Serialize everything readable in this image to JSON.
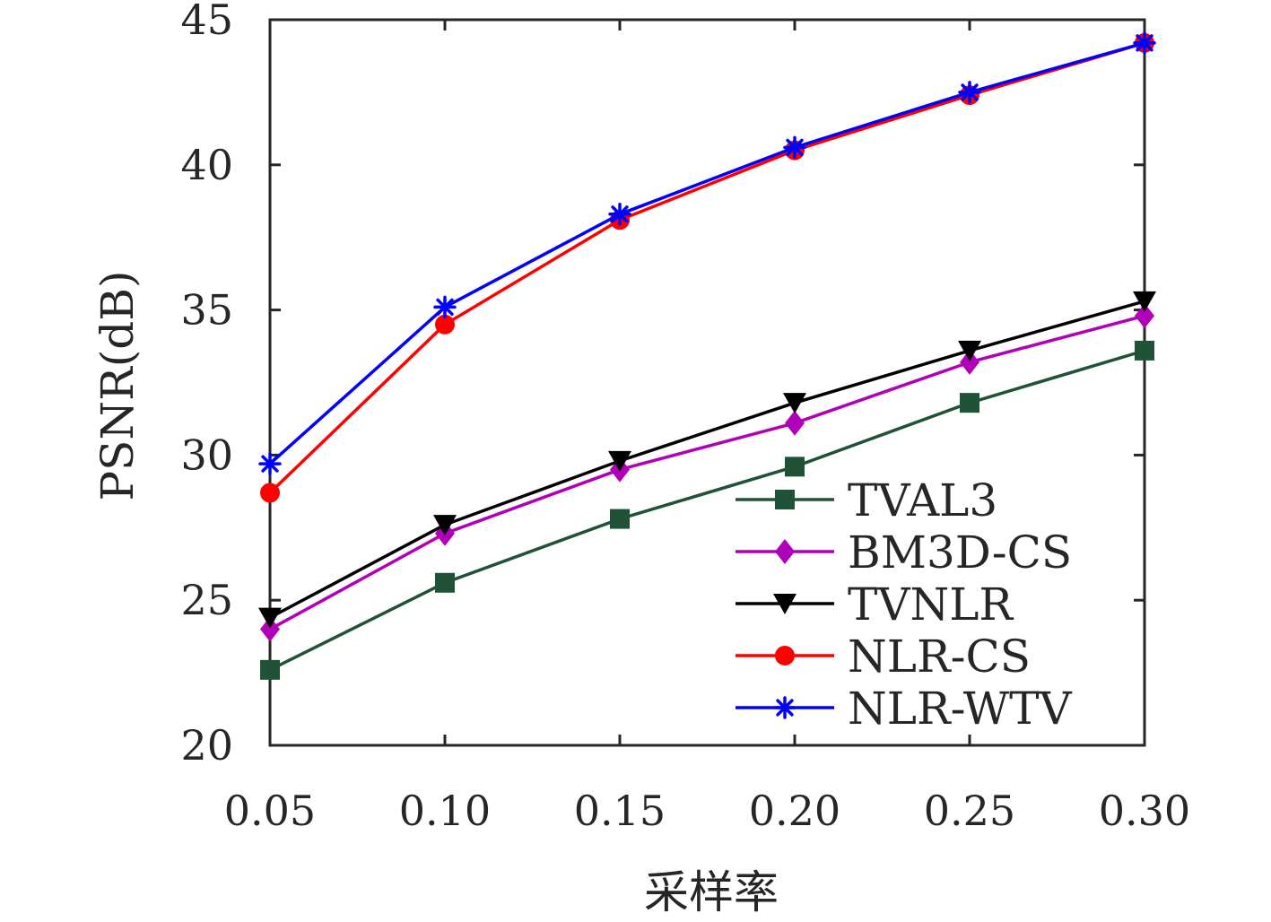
{
  "chart_data": {
    "type": "line",
    "title": "",
    "xlabel": "采样率",
    "ylabel": "PSNR(dB)",
    "x": [
      0.05,
      0.1,
      0.15,
      0.2,
      0.25,
      0.3
    ],
    "x_tick_labels": [
      "0.05",
      "0.10",
      "0.15",
      "0.20",
      "0.25",
      "0.30"
    ],
    "xlim": [
      0.05,
      0.3
    ],
    "ylim": [
      20,
      45
    ],
    "y_ticks": [
      20,
      25,
      30,
      35,
      40,
      45
    ],
    "y_tick_labels": [
      "20",
      "25",
      "30",
      "35",
      "40",
      "45"
    ],
    "grid": false,
    "legend_position": "bottom-right",
    "series": [
      {
        "name": "TVAL3",
        "color": "#1f5236",
        "marker": "square",
        "values": [
          22.6,
          25.6,
          27.8,
          29.6,
          31.8,
          33.6
        ]
      },
      {
        "name": "BM3D-CS",
        "color": "#b000b8",
        "marker": "diamond",
        "values": [
          24.0,
          27.3,
          29.5,
          31.1,
          33.2,
          34.8
        ]
      },
      {
        "name": "TVNLR",
        "color": "#000000",
        "marker": "triangle-down",
        "values": [
          24.4,
          27.6,
          29.8,
          31.8,
          33.6,
          35.3
        ]
      },
      {
        "name": "NLR-CS",
        "color": "#ff0000",
        "marker": "circle",
        "values": [
          28.7,
          34.5,
          38.1,
          40.5,
          42.4,
          44.2
        ]
      },
      {
        "name": "NLR-WTV",
        "color": "#0000ff",
        "marker": "asterisk",
        "values": [
          29.7,
          35.1,
          38.3,
          40.6,
          42.5,
          44.2
        ]
      }
    ]
  }
}
